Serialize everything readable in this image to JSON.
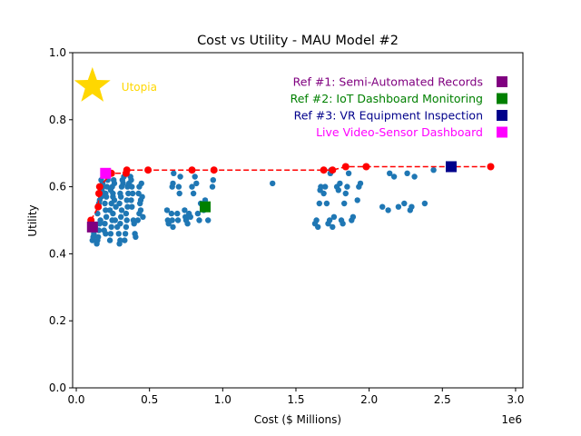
{
  "chart_data": {
    "type": "scatter",
    "title": "Cost vs Utility - MAU Model #2",
    "xlabel": "Cost ($ Millions)",
    "ylabel": "Utility",
    "x_offset_label": "1e6",
    "xlim": [
      -25000,
      3050000
    ],
    "ylim": [
      0,
      1
    ],
    "x_ticks": [
      {
        "value": 0,
        "label": "0.0"
      },
      {
        "value": 500000,
        "label": "0.5"
      },
      {
        "value": 1000000,
        "label": "1.0"
      },
      {
        "value": 1500000,
        "label": "1.5"
      },
      {
        "value": 2000000,
        "label": "2.0"
      },
      {
        "value": 2500000,
        "label": "2.5"
      },
      {
        "value": 3000000,
        "label": "3.0"
      }
    ],
    "y_ticks": [
      {
        "value": 0.0,
        "label": "0.0"
      },
      {
        "value": 0.2,
        "label": "0.2"
      },
      {
        "value": 0.4,
        "label": "0.4"
      },
      {
        "value": 0.6,
        "label": "0.6"
      },
      {
        "value": 0.8,
        "label": "0.8"
      },
      {
        "value": 1.0,
        "label": "1.0"
      }
    ],
    "grid": false,
    "colors": {
      "tradespace": "#1f77b4",
      "pareto": "#ff0000",
      "utopia": "#ffd700",
      "ref1": "#800080",
      "ref2": "#008000",
      "ref3": "#00008b",
      "live": "#ff00ff"
    },
    "tradespace_points": [
      [
        110000,
        0.44
      ],
      [
        115000,
        0.45
      ],
      [
        120000,
        0.46
      ],
      [
        130000,
        0.48
      ],
      [
        140000,
        0.43
      ],
      [
        145000,
        0.44
      ],
      [
        150000,
        0.45
      ],
      [
        155000,
        0.47
      ],
      [
        160000,
        0.49
      ],
      [
        165000,
        0.5
      ],
      [
        145000,
        0.52
      ],
      [
        150000,
        0.54
      ],
      [
        155000,
        0.55
      ],
      [
        160000,
        0.56
      ],
      [
        170000,
        0.57
      ],
      [
        165000,
        0.58
      ],
      [
        175000,
        0.59
      ],
      [
        180000,
        0.6
      ],
      [
        170000,
        0.62
      ],
      [
        180000,
        0.61
      ],
      [
        200000,
        0.58
      ],
      [
        210000,
        0.6
      ],
      [
        215000,
        0.62
      ],
      [
        205000,
        0.57
      ],
      [
        195000,
        0.55
      ],
      [
        200000,
        0.53
      ],
      [
        205000,
        0.51
      ],
      [
        195000,
        0.49
      ],
      [
        190000,
        0.47
      ],
      [
        200000,
        0.46
      ],
      [
        230000,
        0.44
      ],
      [
        235000,
        0.46
      ],
      [
        240000,
        0.48
      ],
      [
        245000,
        0.5
      ],
      [
        250000,
        0.52
      ],
      [
        230000,
        0.53
      ],
      [
        240000,
        0.55
      ],
      [
        250000,
        0.57
      ],
      [
        235000,
        0.59
      ],
      [
        245000,
        0.6
      ],
      [
        260000,
        0.61
      ],
      [
        255000,
        0.62
      ],
      [
        250000,
        0.58
      ],
      [
        260000,
        0.56
      ],
      [
        270000,
        0.54
      ],
      [
        265000,
        0.5
      ],
      [
        280000,
        0.48
      ],
      [
        290000,
        0.46
      ],
      [
        300000,
        0.44
      ],
      [
        295000,
        0.43
      ],
      [
        300000,
        0.49
      ],
      [
        305000,
        0.51
      ],
      [
        310000,
        0.53
      ],
      [
        295000,
        0.55
      ],
      [
        305000,
        0.57
      ],
      [
        300000,
        0.58
      ],
      [
        310000,
        0.6
      ],
      [
        320000,
        0.61
      ],
      [
        315000,
        0.62
      ],
      [
        325000,
        0.63
      ],
      [
        330000,
        0.44
      ],
      [
        335000,
        0.46
      ],
      [
        340000,
        0.48
      ],
      [
        345000,
        0.5
      ],
      [
        340000,
        0.52
      ],
      [
        350000,
        0.54
      ],
      [
        345000,
        0.56
      ],
      [
        355000,
        0.58
      ],
      [
        350000,
        0.6
      ],
      [
        360000,
        0.61
      ],
      [
        370000,
        0.63
      ],
      [
        375000,
        0.62
      ],
      [
        380000,
        0.6
      ],
      [
        385000,
        0.58
      ],
      [
        375000,
        0.56
      ],
      [
        380000,
        0.54
      ],
      [
        390000,
        0.5
      ],
      [
        395000,
        0.49
      ],
      [
        400000,
        0.46
      ],
      [
        405000,
        0.45
      ],
      [
        420000,
        0.5
      ],
      [
        430000,
        0.52
      ],
      [
        435000,
        0.55
      ],
      [
        440000,
        0.56
      ],
      [
        425000,
        0.58
      ],
      [
        430000,
        0.6
      ],
      [
        445000,
        0.61
      ],
      [
        450000,
        0.57
      ],
      [
        440000,
        0.53
      ],
      [
        455000,
        0.51
      ],
      [
        620000,
        0.53
      ],
      [
        625000,
        0.5
      ],
      [
        630000,
        0.49
      ],
      [
        650000,
        0.52
      ],
      [
        655000,
        0.5
      ],
      [
        660000,
        0.48
      ],
      [
        655000,
        0.6
      ],
      [
        660000,
        0.61
      ],
      [
        665000,
        0.64
      ],
      [
        690000,
        0.52
      ],
      [
        695000,
        0.5
      ],
      [
        700000,
        0.6
      ],
      [
        705000,
        0.58
      ],
      [
        710000,
        0.63
      ],
      [
        740000,
        0.53
      ],
      [
        745000,
        0.51
      ],
      [
        750000,
        0.5
      ],
      [
        760000,
        0.49
      ],
      [
        770000,
        0.52
      ],
      [
        780000,
        0.51
      ],
      [
        790000,
        0.6
      ],
      [
        800000,
        0.58
      ],
      [
        810000,
        0.63
      ],
      [
        820000,
        0.61
      ],
      [
        830000,
        0.52
      ],
      [
        840000,
        0.5
      ],
      [
        850000,
        0.55
      ],
      [
        870000,
        0.53
      ],
      [
        880000,
        0.56
      ],
      [
        900000,
        0.5
      ],
      [
        930000,
        0.6
      ],
      [
        935000,
        0.62
      ],
      [
        1340000,
        0.61
      ],
      [
        1630000,
        0.49
      ],
      [
        1640000,
        0.5
      ],
      [
        1650000,
        0.48
      ],
      [
        1660000,
        0.55
      ],
      [
        1665000,
        0.59
      ],
      [
        1670000,
        0.6
      ],
      [
        1690000,
        0.58
      ],
      [
        1700000,
        0.6
      ],
      [
        1710000,
        0.55
      ],
      [
        1720000,
        0.49
      ],
      [
        1730000,
        0.5
      ],
      [
        1735000,
        0.64
      ],
      [
        1740000,
        0.65
      ],
      [
        1750000,
        0.48
      ],
      [
        1760000,
        0.51
      ],
      [
        1780000,
        0.6
      ],
      [
        1790000,
        0.59
      ],
      [
        1800000,
        0.61
      ],
      [
        1810000,
        0.5
      ],
      [
        1820000,
        0.49
      ],
      [
        1830000,
        0.55
      ],
      [
        1840000,
        0.58
      ],
      [
        1850000,
        0.6
      ],
      [
        1860000,
        0.64
      ],
      [
        1880000,
        0.5
      ],
      [
        1890000,
        0.51
      ],
      [
        1920000,
        0.56
      ],
      [
        1930000,
        0.6
      ],
      [
        1940000,
        0.61
      ],
      [
        2090000,
        0.54
      ],
      [
        2130000,
        0.53
      ],
      [
        2140000,
        0.64
      ],
      [
        2170000,
        0.63
      ],
      [
        2200000,
        0.54
      ],
      [
        2240000,
        0.55
      ],
      [
        2260000,
        0.64
      ],
      [
        2280000,
        0.53
      ],
      [
        2290000,
        0.54
      ],
      [
        2310000,
        0.63
      ],
      [
        2380000,
        0.55
      ],
      [
        2440000,
        0.65
      ]
    ],
    "pareto_front": [
      [
        100000,
        0.5
      ],
      [
        150000,
        0.54
      ],
      [
        155000,
        0.58
      ],
      [
        160000,
        0.6
      ],
      [
        240000,
        0.64
      ],
      [
        340000,
        0.64
      ],
      [
        345000,
        0.65
      ],
      [
        490000,
        0.65
      ],
      [
        790000,
        0.65
      ],
      [
        940000,
        0.65
      ],
      [
        1690000,
        0.65
      ],
      [
        1750000,
        0.65
      ],
      [
        1840000,
        0.66
      ],
      [
        1980000,
        0.66
      ],
      [
        2830000,
        0.66
      ]
    ],
    "utopia": {
      "x": 110000,
      "y": 0.9,
      "label": "Utopia"
    },
    "reference_designs": [
      {
        "key": "ref1",
        "label": "Ref #1: Semi-Automated Records",
        "x": 110000,
        "y": 0.48
      },
      {
        "key": "ref2",
        "label": "Ref #2: IoT Dashboard Monitoring",
        "x": 880000,
        "y": 0.54
      },
      {
        "key": "ref3",
        "label": "Ref #3: VR Equipment Inspection",
        "x": 2560000,
        "y": 0.66
      },
      {
        "key": "live",
        "label": "Live Video-Sensor Dashboard",
        "x": 200000,
        "y": 0.64
      }
    ]
  }
}
